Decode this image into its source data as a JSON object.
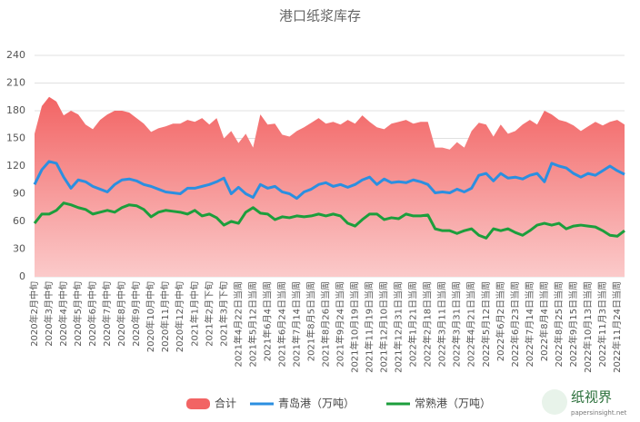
{
  "chart_data": {
    "type": "line",
    "title": "港口纸浆库存",
    "categories": [
      "2020年2月中旬",
      null,
      "2020年3月中旬",
      null,
      "2020年4月中旬",
      null,
      "2020年5月中旬",
      null,
      "2020年6月中旬",
      null,
      "2020年7月中旬",
      null,
      "2020年8月中旬",
      null,
      "2020年9月中旬",
      null,
      "2020年10月中旬",
      null,
      "2020年11月中旬",
      null,
      "2020年12月中旬",
      null,
      "2021年1月中旬",
      null,
      "2021年2月下旬",
      null,
      "2021年3月下旬",
      null,
      "2021年4月22日当周",
      null,
      "2021年5月12日当周",
      null,
      "2021年6月4日当周",
      null,
      "2021年6月24日当周",
      null,
      "2021年7月14日当周",
      null,
      "2021年8月5日当周",
      null,
      "2021年8月26日当周",
      null,
      "2021年9月24日当周",
      null,
      "2021年10月19日当周",
      null,
      "2021年11月19日当周",
      null,
      "2021年12月10日当周",
      null,
      "2021年12月31日当周",
      null,
      "2022年1月21日当周",
      null,
      "2022年2月18日当周",
      null,
      "2022年3月11日当周",
      null,
      "2022年3月31日当周",
      null,
      "2022年4月21日当周",
      null,
      "2022年5月12日当周",
      null,
      "2022年6月2日当周",
      null,
      "2022年6月23日当周",
      null,
      "2022年7月14日当周",
      null,
      "2022年8月4日当周",
      null,
      "2022年8月25日当周",
      null,
      "2022年9月15日当周",
      null,
      "2022年10月13日当周",
      null,
      "2022年11月3日当周",
      null,
      "2022年11月24日当周",
      null
    ],
    "series": [
      {
        "name": "合计",
        "type": "area",
        "color": "#f26464",
        "color2": "#fbcaca",
        "values": [
          155,
          185,
          195,
          190,
          175,
          180,
          176,
          165,
          160,
          170,
          176,
          180,
          180,
          178,
          172,
          166,
          157,
          161,
          163,
          166,
          166,
          170,
          168,
          172,
          165,
          172,
          150,
          158,
          145,
          155,
          140,
          176,
          165,
          166,
          154,
          152,
          158,
          162,
          167,
          172,
          166,
          168,
          165,
          170,
          166,
          175,
          168,
          162,
          160,
          166,
          168,
          170,
          166,
          168,
          168,
          140,
          140,
          138,
          146,
          140,
          158,
          167,
          165,
          152,
          165,
          155,
          158,
          165,
          170,
          165,
          180,
          176,
          170,
          168,
          164,
          158,
          163,
          168,
          164,
          168,
          170,
          165
        ]
      },
      {
        "name": "青岛港（万吨）",
        "type": "line",
        "color": "#2b8fe0",
        "values": [
          100,
          116,
          125,
          123,
          108,
          96,
          105,
          103,
          98,
          95,
          92,
          100,
          105,
          106,
          104,
          100,
          98,
          95,
          92,
          91,
          90,
          96,
          96,
          98,
          100,
          103,
          107,
          90,
          97,
          90,
          86,
          100,
          96,
          98,
          92,
          90,
          85,
          92,
          95,
          100,
          102,
          98,
          100,
          97,
          100,
          105,
          108,
          100,
          106,
          102,
          103,
          102,
          105,
          103,
          100,
          91,
          92,
          91,
          95,
          92,
          96,
          110,
          112,
          104,
          112,
          107,
          108,
          106,
          110,
          112,
          103,
          123,
          120,
          118,
          112,
          108,
          112,
          110,
          115,
          120,
          115,
          111
        ]
      },
      {
        "name": "常熟港（万吨）",
        "type": "line",
        "color": "#1c9e3c",
        "values": [
          58,
          68,
          68,
          72,
          80,
          78,
          75,
          73,
          68,
          70,
          72,
          70,
          75,
          78,
          77,
          73,
          65,
          70,
          72,
          71,
          70,
          68,
          72,
          66,
          68,
          64,
          56,
          60,
          58,
          70,
          75,
          69,
          68,
          62,
          65,
          64,
          66,
          65,
          66,
          68,
          66,
          68,
          66,
          58,
          55,
          62,
          68,
          68,
          62,
          64,
          63,
          68,
          66,
          66,
          67,
          52,
          50,
          50,
          47,
          50,
          52,
          45,
          42,
          52,
          50,
          52,
          48,
          45,
          50,
          56,
          58,
          56,
          58,
          52,
          55,
          56,
          55,
          54,
          50,
          45,
          44,
          50
        ]
      }
    ],
    "ylim": [
      0,
      240
    ],
    "yticks": [
      0,
      30,
      60,
      90,
      120,
      150,
      180,
      210,
      240
    ],
    "grid": true,
    "legend": "bottom"
  },
  "watermark": {
    "name": "纸视界",
    "url": "papersinsight.net"
  }
}
